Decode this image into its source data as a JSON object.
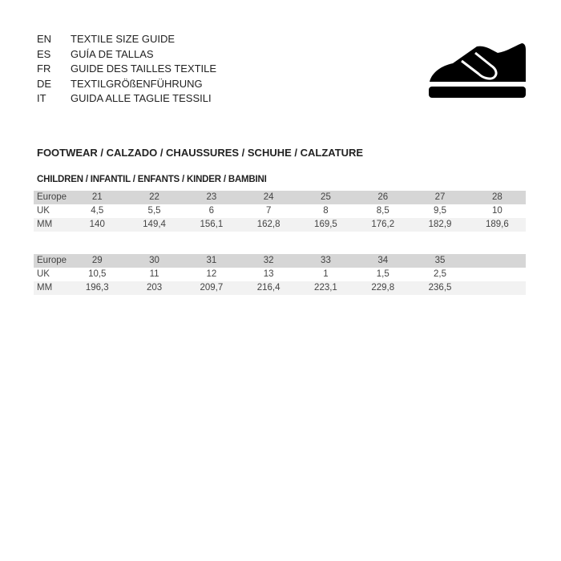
{
  "languages": [
    {
      "code": "EN",
      "title": "TEXTILE SIZE GUIDE"
    },
    {
      "code": "ES",
      "title": "GUÍA DE TALLAS"
    },
    {
      "code": "FR",
      "title": "GUIDE DES TAILLES TEXTILE"
    },
    {
      "code": "DE",
      "title": "TEXTILGRÖßENFÜHRUNG"
    },
    {
      "code": "IT",
      "title": "GUIDA ALLE TAGLIE TESSILI"
    }
  ],
  "icon": "shoe-icon",
  "section_title": "FOOTWEAR / CALZADO / CHAUSSURES / SCHUHE / CALZATURE",
  "subsection_title": "CHILDREN / INFANTIL / ENFANTS / KINDER / BAMBINI",
  "tables": [
    {
      "rows": [
        {
          "label": "Europe",
          "values": [
            "21",
            "22",
            "23",
            "24",
            "25",
            "26",
            "27",
            "28"
          ]
        },
        {
          "label": "UK",
          "values": [
            "4,5",
            "5,5",
            "6",
            "7",
            "8",
            "8,5",
            "9,5",
            "10"
          ]
        },
        {
          "label": "MM",
          "values": [
            "140",
            "149,4",
            "156,1",
            "162,8",
            "169,5",
            "176,2",
            "182,9",
            "189,6"
          ]
        }
      ]
    },
    {
      "rows": [
        {
          "label": "Europe",
          "values": [
            "29",
            "30",
            "31",
            "32",
            "33",
            "34",
            "35",
            ""
          ]
        },
        {
          "label": "UK",
          "values": [
            "10,5",
            "11",
            "12",
            "13",
            "1",
            "1,5",
            "2,5",
            ""
          ]
        },
        {
          "label": "MM",
          "values": [
            "196,3",
            "203",
            "209,7",
            "216,4",
            "223,1",
            "229,8",
            "236,5",
            ""
          ]
        }
      ]
    }
  ]
}
